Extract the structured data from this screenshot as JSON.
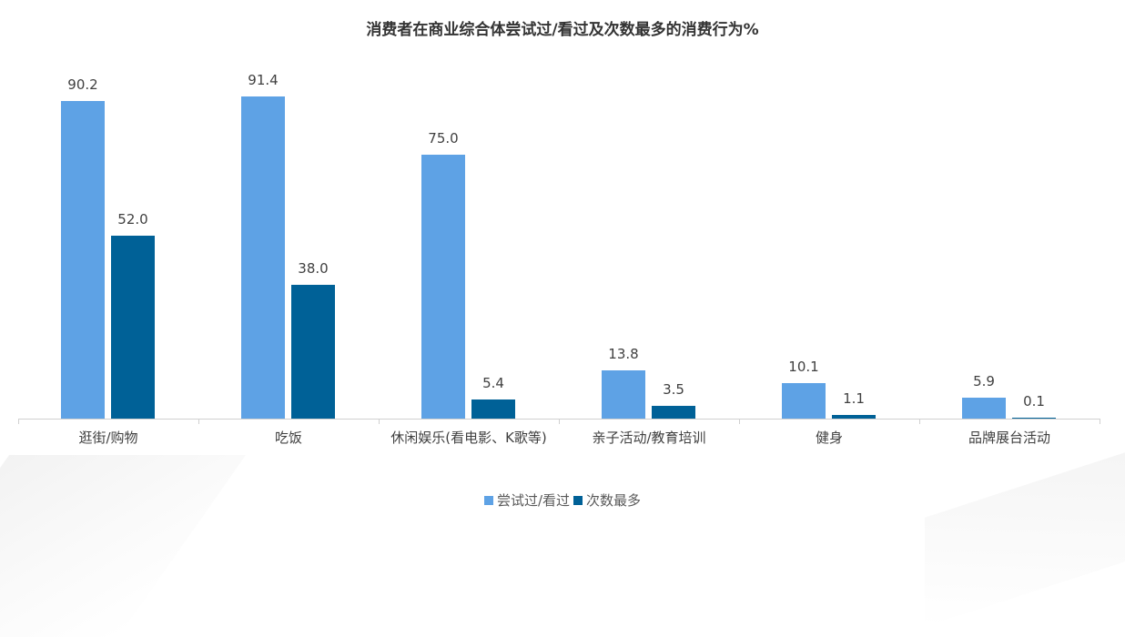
{
  "chart_data": {
    "type": "bar",
    "title": "消费者在商业综合体尝试过/看过及次数最多的消费行为%",
    "xlabel": "",
    "ylabel": "",
    "ylim": [
      0,
      100
    ],
    "grid": false,
    "legend_position": "bottom",
    "categories": [
      "逛街/购物",
      "吃饭",
      "休闲娱乐(看电影、K歌等)",
      "亲子活动/教育培训",
      "健身",
      "品牌展台活动"
    ],
    "series": [
      {
        "name": "尝试过/看过",
        "color": "#5ea2e5",
        "values": [
          90.2,
          91.4,
          75.0,
          13.8,
          10.1,
          5.9
        ]
      },
      {
        "name": "次数最多",
        "color": "#006197",
        "values": [
          52.0,
          38.0,
          5.4,
          3.5,
          1.1,
          0.1
        ]
      }
    ],
    "data_labels": [
      [
        "90.2",
        "91.4",
        "75.0",
        "13.8",
        "10.1",
        "5.9"
      ],
      [
        "52.0",
        "38.0",
        "5.4",
        "3.5",
        "1.1",
        "0.1"
      ]
    ]
  },
  "legend": {
    "items": [
      {
        "label": "尝试过/看过",
        "color": "#5ea2e5"
      },
      {
        "label": "次数最多",
        "color": "#006197"
      }
    ]
  }
}
